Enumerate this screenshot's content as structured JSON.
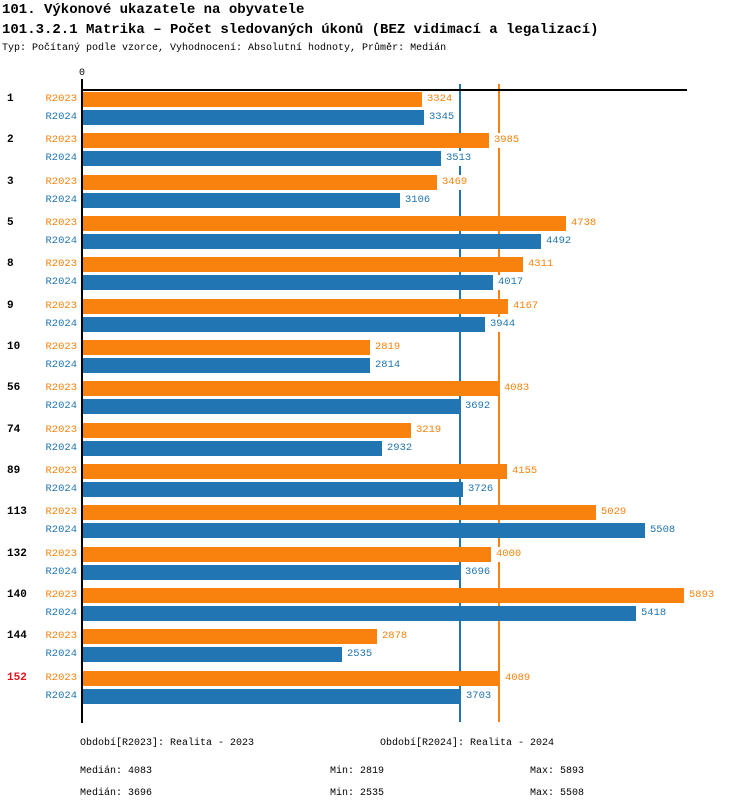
{
  "header": {
    "title": "101. Výkonové ukazatele na obyvatele",
    "subtitle": "101.3.2.1 Matrika – Počet sledovaných úkonů (BEZ vidimací a legalizací)",
    "meta": "Typ: Počítaný podle vzorce, Vyhodnocení: Absolutní hodnoty, Průměr: Medián"
  },
  "colors": {
    "r2023": "#F8820D",
    "r2024": "#2175B2",
    "highlight_category": "#E1141C",
    "axis": "#000000"
  },
  "chart_data": {
    "type": "bar",
    "orientation": "horizontal",
    "zero_label": "0",
    "categories": [
      "1",
      "2",
      "3",
      "5",
      "8",
      "9",
      "10",
      "56",
      "74",
      "89",
      "113",
      "132",
      "140",
      "144",
      "152"
    ],
    "highlighted_category": "152",
    "series": [
      {
        "name": "R2023",
        "color": "#F8820D",
        "values": [
          3324,
          3985,
          3469,
          4738,
          4311,
          4167,
          2819,
          4083,
          3219,
          4155,
          5029,
          4000,
          5893,
          2878,
          4089
        ]
      },
      {
        "name": "R2024",
        "color": "#2175B2",
        "values": [
          3345,
          3513,
          3106,
          4492,
          4017,
          3944,
          2814,
          3692,
          2932,
          3726,
          5508,
          3696,
          5418,
          2535,
          3703
        ]
      }
    ],
    "xlim": [
      0,
      5893
    ],
    "grid": false,
    "reference_lines": [
      {
        "series": "R2023",
        "label": "median",
        "value": 4083
      },
      {
        "series": "R2024",
        "label": "median",
        "value": 3696
      }
    ]
  },
  "legend": {
    "r2023": "Období[R2023]: Realita - 2023",
    "r2024": "Období[R2024]: Realita - 2024"
  },
  "stats": {
    "r2023": {
      "median": "Medián: 4083",
      "min": "Min: 2819",
      "max": "Max: 5893"
    },
    "r2024": {
      "median": "Medián: 3696",
      "min": "Min: 2535",
      "max": "Max: 5508"
    }
  }
}
